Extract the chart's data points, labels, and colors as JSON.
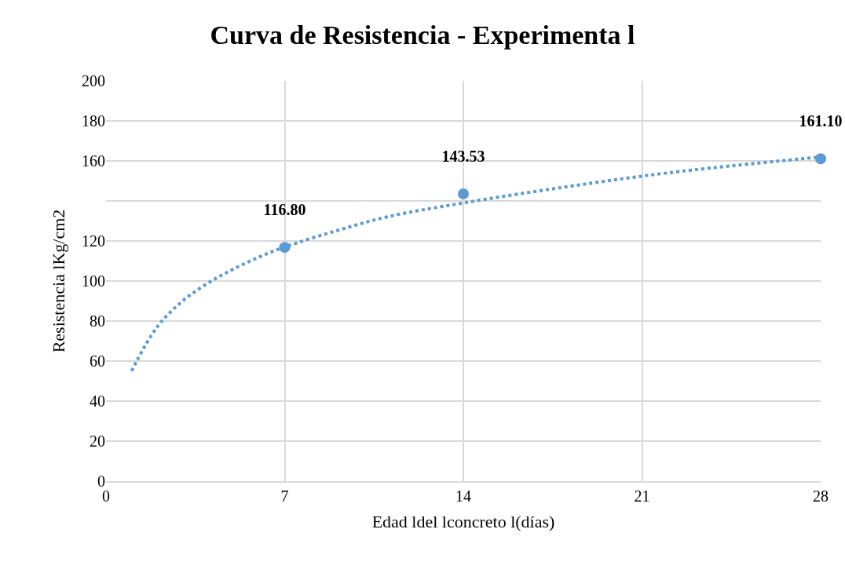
{
  "chart_data": {
    "type": "scatter",
    "title": "Curva de Resistencia - Experimenta l",
    "xlabel": "Edad ldel lconcreto l(días)",
    "ylabel": "Resistencia lKg/cm2",
    "xlim": [
      0,
      28
    ],
    "xticks": [
      0,
      7,
      14,
      21,
      28
    ],
    "ylim": [
      0,
      200
    ],
    "yticks": [
      0,
      20,
      40,
      60,
      80,
      100,
      120,
      {
        "value": 140,
        "label": null
      },
      160,
      180,
      200
    ],
    "grid": true,
    "series": [
      {
        "type": "line",
        "color": "#5b9bd5",
        "line_style": "dotted",
        "marker": "none",
        "x": [
          1,
          2,
          3,
          4,
          5,
          6,
          7,
          9,
          11,
          14,
          18,
          22,
          28
        ],
        "values": [
          55,
          77,
          90,
          99,
          106,
          112,
          117,
          125,
          132,
          139,
          147,
          154,
          162
        ]
      },
      {
        "color": "#5b9bd5",
        "marker": "circle",
        "x": [
          7,
          14,
          28
        ],
        "values": [
          116.8,
          143.53,
          161.1
        ],
        "value_labels": [
          "116.80",
          "143.53",
          "161.10"
        ]
      }
    ]
  }
}
